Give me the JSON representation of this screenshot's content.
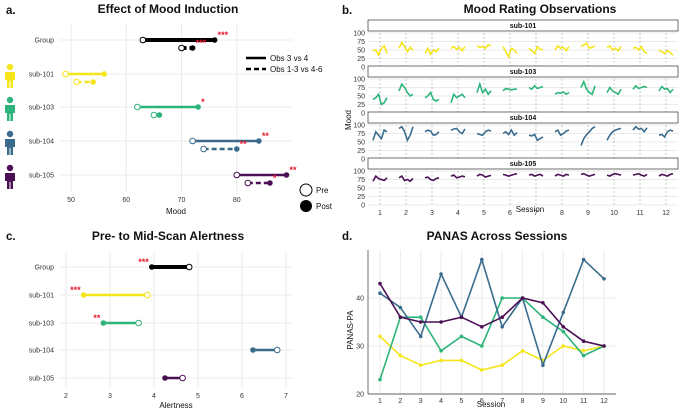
{
  "colors": {
    "group": "#000000",
    "sub-101": "#F5E51B",
    "sub-103": "#2EB47A",
    "sub-104": "#3A6C8E",
    "sub-105": "#4B0F55",
    "sig": "#e8192c",
    "grid": "#ebebeb"
  },
  "icons": [
    "person-icon-yellow",
    "person-icon-green",
    "person-icon-blue",
    "person-icon-purple"
  ],
  "chart_data": [
    {
      "panel_label": "a.",
      "type": "dumbbell",
      "title": "Effect of Mood Induction",
      "xlabel": "Mood",
      "xlim": [
        48,
        90
      ],
      "xticks": [
        "50",
        "60",
        "70",
        "80"
      ],
      "rows": [
        "Group",
        "sub-101",
        "sub-103",
        "sub-104",
        "sub-105"
      ],
      "legend": {
        "shape": [
          "Pre",
          "Post"
        ],
        "line": [
          "Obs 3 vs 4",
          "Obs 1-3 vs 4-6"
        ]
      },
      "series": [
        {
          "row": "Group",
          "comparison": "Obs 3 vs 4",
          "pre": 63,
          "post": 76,
          "sig": "***"
        },
        {
          "row": "Group",
          "comparison": "Obs 1-3 vs 4-6",
          "pre": 70,
          "post": 72,
          "sig": "***"
        },
        {
          "row": "sub-101",
          "comparison": "Obs 3 vs 4",
          "pre": 49,
          "post": 56,
          "sig": ""
        },
        {
          "row": "sub-101",
          "comparison": "Obs 1-3 vs 4-6",
          "pre": 51,
          "post": 54,
          "sig": ""
        },
        {
          "row": "sub-103",
          "comparison": "Obs 3 vs 4",
          "pre": 62,
          "post": 73,
          "sig": "*"
        },
        {
          "row": "sub-103",
          "comparison": "Obs 1-3 vs 4-6",
          "pre": 65,
          "post": 66,
          "sig": ""
        },
        {
          "row": "sub-104",
          "comparison": "Obs 3 vs 4",
          "pre": 72,
          "post": 84,
          "sig": "**"
        },
        {
          "row": "sub-104",
          "comparison": "Obs 1-3 vs 4-6",
          "pre": 74,
          "post": 80,
          "sig": "**"
        },
        {
          "row": "sub-105",
          "comparison": "Obs 3 vs 4",
          "pre": 80,
          "post": 89,
          "sig": "**"
        },
        {
          "row": "sub-105",
          "comparison": "Obs 1-3 vs 4-6",
          "pre": 82,
          "post": 86,
          "sig": "*"
        }
      ]
    },
    {
      "panel_label": "b.",
      "type": "line",
      "title": "Mood Rating Observations",
      "xlabel": "Session",
      "ylabel": "Mood",
      "ylim": [
        0,
        100
      ],
      "yticks": [
        "0",
        "25",
        "50",
        "75",
        "100"
      ],
      "x": [
        "1",
        "2",
        "3",
        "4",
        "5",
        "6",
        "7",
        "8",
        "9",
        "10",
        "11",
        "12"
      ],
      "facets": [
        {
          "name": "sub-101",
          "sessions": [
            [
              48,
              50,
              35,
              55,
              62,
              40
            ],
            [
              55,
              72,
              60,
              45,
              58,
              50
            ],
            [
              40,
              55,
              38,
              50,
              45,
              55
            ],
            [
              55,
              60,
              52,
              58,
              48,
              60
            ],
            [
              62,
              58,
              60,
              55,
              65,
              62
            ],
            [
              60,
              45,
              30,
              55,
              50,
              40
            ],
            [
              55,
              48,
              40,
              60,
              52,
              50
            ],
            [
              50,
              62,
              55,
              58,
              48,
              60
            ],
            [
              60,
              65,
              70,
              55,
              58,
              62
            ],
            [
              58,
              62,
              50,
              55,
              48,
              60
            ],
            [
              55,
              58,
              50,
              60,
              45,
              40
            ],
            [
              50,
              45,
              40,
              48,
              42,
              35
            ]
          ]
        },
        {
          "name": "sub-103",
          "sessions": [
            [
              40,
              45,
              55,
              25,
              30,
              45
            ],
            [
              65,
              85,
              75,
              60,
              50,
              55
            ],
            [
              45,
              50,
              60,
              40,
              35,
              40
            ],
            [
              30,
              55,
              45,
              50,
              55,
              45
            ],
            [
              60,
              85,
              60,
              70,
              55,
              65
            ],
            [
              65,
              72,
              70,
              68,
              70,
              70
            ],
            [
              75,
              70,
              80,
              72,
              75,
              78
            ],
            [
              55,
              60,
              58,
              62,
              55,
              60
            ],
            [
              75,
              92,
              70,
              60,
              55,
              80
            ],
            [
              60,
              75,
              65,
              60,
              55,
              70
            ],
            [
              70,
              80,
              72,
              75,
              78,
              75
            ],
            [
              65,
              78,
              70,
              72,
              60,
              70
            ]
          ]
        },
        {
          "name": "sub-104",
          "sessions": [
            [
              55,
              80,
              70,
              60,
              85,
              80
            ],
            [
              90,
              95,
              80,
              55,
              70,
              95
            ],
            [
              80,
              85,
              82,
              70,
              72,
              80
            ],
            [
              85,
              88,
              90,
              80,
              75,
              88
            ],
            [
              75,
              72,
              70,
              80,
              85,
              82
            ],
            [
              75,
              80,
              72,
              85,
              70,
              78
            ],
            [
              70,
              68,
              72,
              55,
              60,
              65
            ],
            [
              80,
              85,
              70,
              75,
              82,
              85
            ],
            [
              40,
              60,
              72,
              80,
              90,
              95
            ],
            [
              55,
              70,
              80,
              85,
              88,
              90
            ],
            [
              85,
              95,
              88,
              90,
              80,
              92
            ],
            [
              70,
              72,
              65,
              80,
              85,
              82
            ]
          ]
        },
        {
          "name": "sub-105",
          "sessions": [
            [
              70,
              85,
              78,
              75,
              72,
              80
            ],
            [
              80,
              85,
              72,
              75,
              70,
              78
            ],
            [
              80,
              82,
              75,
              72,
              78,
              80
            ],
            [
              85,
              88,
              80,
              82,
              85,
              83
            ],
            [
              85,
              90,
              88,
              82,
              85,
              87
            ],
            [
              90,
              88,
              85,
              88,
              90,
              92
            ],
            [
              88,
              90,
              85,
              88,
              90,
              85
            ],
            [
              85,
              90,
              88,
              85,
              90,
              88
            ],
            [
              90,
              92,
              88,
              85,
              88,
              90
            ],
            [
              88,
              85,
              90,
              92,
              90,
              88
            ],
            [
              88,
              90,
              92,
              88,
              85,
              90
            ],
            [
              85,
              90,
              88,
              85,
              90,
              92
            ]
          ]
        }
      ]
    },
    {
      "panel_label": "c.",
      "type": "dumbbell",
      "title": "Pre- to Mid-Scan Alertness",
      "xlabel": "Alertness",
      "xlim": [
        2,
        7
      ],
      "xticks": [
        "2",
        "3",
        "4",
        "5",
        "6",
        "7"
      ],
      "rows": [
        "Group",
        "sub-101",
        "sub-103",
        "sub-104",
        "sub-105"
      ],
      "series": [
        {
          "row": "Group",
          "pre": 4.8,
          "post": 3.95,
          "sig": "***"
        },
        {
          "row": "sub-101",
          "pre": 3.85,
          "post": 2.4,
          "sig": "***"
        },
        {
          "row": "sub-103",
          "pre": 3.65,
          "post": 2.85,
          "sig": "**"
        },
        {
          "row": "sub-104",
          "pre": 6.8,
          "post": 6.25,
          "sig": ""
        },
        {
          "row": "sub-105",
          "pre": 4.65,
          "post": 4.25,
          "sig": ""
        }
      ]
    },
    {
      "panel_label": "d.",
      "type": "line",
      "title": "PANAS Across Sessions",
      "xlabel": "Session",
      "ylabel": "PANAS-PA",
      "ylim": [
        20,
        50
      ],
      "yticks": [
        "20",
        "30",
        "40"
      ],
      "categories": [
        "1",
        "2",
        "3",
        "4",
        "5",
        "6",
        "7",
        "8",
        "9",
        "10",
        "11",
        "12"
      ],
      "series": [
        {
          "name": "sub-101",
          "values": [
            32,
            28,
            26,
            27,
            27,
            25,
            26,
            29,
            27,
            30,
            29,
            30
          ]
        },
        {
          "name": "sub-103",
          "values": [
            23,
            36,
            36,
            29,
            32,
            30,
            40,
            40,
            36,
            33,
            28,
            30
          ]
        },
        {
          "name": "sub-104",
          "values": [
            41,
            38,
            32,
            45,
            36,
            48,
            34,
            40,
            26,
            37,
            48,
            44
          ]
        },
        {
          "name": "sub-105",
          "values": [
            43,
            36,
            35,
            35,
            36,
            34,
            36,
            40,
            39,
            34,
            31,
            30
          ]
        }
      ]
    }
  ]
}
